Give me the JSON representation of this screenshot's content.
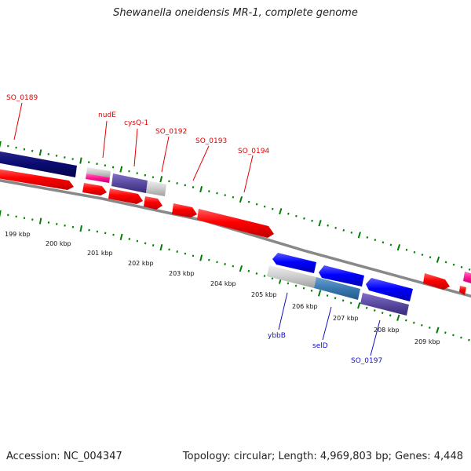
{
  "title": "Shewanella oneidensis MR-1, complete genome",
  "footer": {
    "accession": "Accession: NC_004347",
    "info": "Topology: circular; Length: 4,969,803 bp; Genes: 4,448"
  },
  "ruler_labels": [
    "199 kbp",
    "200 kbp",
    "201 kbp",
    "202 kbp",
    "203 kbp",
    "204 kbp",
    "205 kbp",
    "206 kbp",
    "207 kbp",
    "208 kbp",
    "209 kbp"
  ],
  "gene_labels_forward": [
    "SO_0189",
    "nudE",
    "cysQ-1",
    "SO_0192",
    "SO_0193",
    "SO_0194"
  ],
  "gene_labels_reverse": [
    "ybbB",
    "selD",
    "SO_0197"
  ],
  "colors": {
    "forward_gene": "#ff0000",
    "reverse_gene": "#0000ff",
    "backbone": "#888888",
    "tick": "#008000",
    "navy_gene": "#0a0a70",
    "pink_gene": "#ff1493",
    "purple_gene": "#5a4aa0",
    "grey_gene": "#c8c8c8",
    "steelblue_gene": "#3a78b0"
  }
}
